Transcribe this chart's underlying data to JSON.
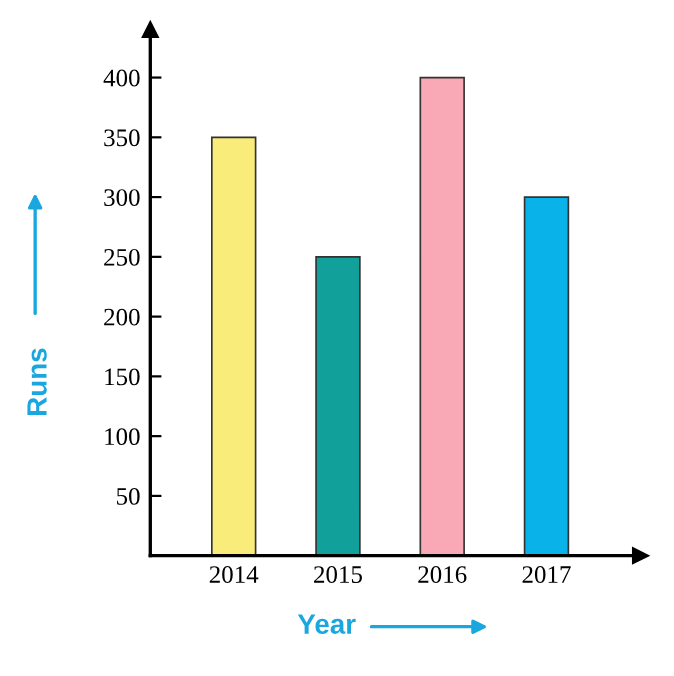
{
  "chart_data": {
    "type": "bar",
    "xlabel": "Year",
    "ylabel": "Runs",
    "categories": [
      "2014",
      "2015",
      "2016",
      "2017"
    ],
    "values": [
      350,
      250,
      400,
      300
    ],
    "colors": [
      "#f9ec7a",
      "#12a09a",
      "#f8a9b5",
      "#0ab2ea"
    ],
    "ylim": [
      0,
      440
    ],
    "yticks": [
      50,
      100,
      150,
      200,
      250,
      300,
      350,
      400
    ],
    "grid": false,
    "legend": false
  }
}
